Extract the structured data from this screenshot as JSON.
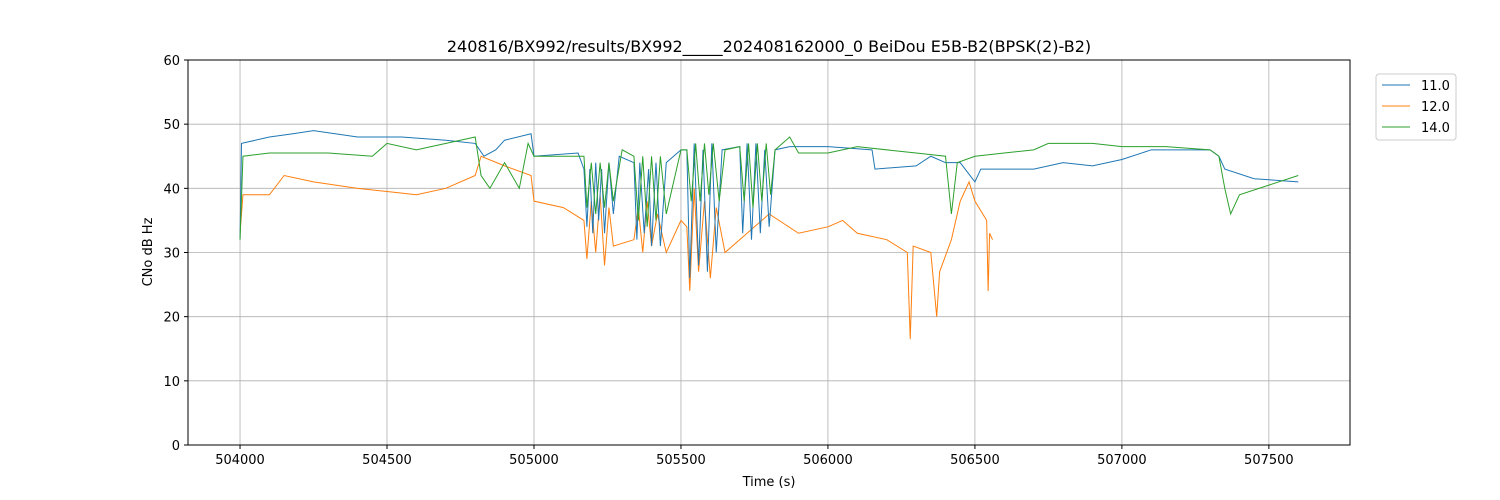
{
  "chart_data": {
    "type": "line",
    "title": "240816/BX992/results/BX992_____202408162000_0 BeiDou E5B-B2(BPSK(2)-B2)",
    "xlabel": "Time (s)",
    "ylabel": "CNo dB Hz",
    "xlim": [
      503823,
      507776
    ],
    "ylim": [
      0,
      60
    ],
    "xticks": [
      504000,
      504500,
      505000,
      505500,
      506000,
      506500,
      507000,
      507500
    ],
    "yticks": [
      0,
      10,
      20,
      30,
      40,
      50,
      60
    ],
    "grid": true,
    "legend_position": "outside-top-right",
    "series": [
      {
        "name": "11.0",
        "color": "#1f77b4",
        "points": [
          [
            504000,
            32
          ],
          [
            504005,
            47
          ],
          [
            504100,
            48
          ],
          [
            504180,
            48.5
          ],
          [
            504250,
            49
          ],
          [
            504400,
            48
          ],
          [
            504550,
            48
          ],
          [
            504700,
            47.5
          ],
          [
            504800,
            47
          ],
          [
            504830,
            45
          ],
          [
            504870,
            46
          ],
          [
            504900,
            47.5
          ],
          [
            504990,
            48.5
          ],
          [
            505000,
            45
          ],
          [
            505150,
            45.5
          ],
          [
            505170,
            43
          ],
          [
            505180,
            34
          ],
          [
            505190,
            43
          ],
          [
            505200,
            33
          ],
          [
            505210,
            44
          ],
          [
            505220,
            35
          ],
          [
            505230,
            43
          ],
          [
            505240,
            33
          ],
          [
            505255,
            44
          ],
          [
            505270,
            36
          ],
          [
            505290,
            45
          ],
          [
            505340,
            44
          ],
          [
            505350,
            32
          ],
          [
            505360,
            44
          ],
          [
            505375,
            33
          ],
          [
            505390,
            43
          ],
          [
            505400,
            31
          ],
          [
            505415,
            44
          ],
          [
            505430,
            31
          ],
          [
            505450,
            44
          ],
          [
            505500,
            46
          ],
          [
            505520,
            46
          ],
          [
            505530,
            26
          ],
          [
            505545,
            47
          ],
          [
            505560,
            28
          ],
          [
            505575,
            46
          ],
          [
            505590,
            27
          ],
          [
            505605,
            47
          ],
          [
            505620,
            30
          ],
          [
            505640,
            46
          ],
          [
            505700,
            46.5
          ],
          [
            505710,
            33
          ],
          [
            505725,
            47
          ],
          [
            505740,
            32
          ],
          [
            505755,
            47
          ],
          [
            505770,
            33
          ],
          [
            505785,
            46
          ],
          [
            505800,
            34
          ],
          [
            505820,
            46
          ],
          [
            505870,
            46.5
          ],
          [
            506000,
            46.5
          ],
          [
            506150,
            46
          ],
          [
            506160,
            43
          ],
          [
            506300,
            43.5
          ],
          [
            506350,
            45
          ],
          [
            506400,
            44
          ],
          [
            506450,
            44
          ],
          [
            506500,
            41
          ],
          [
            506520,
            43
          ],
          [
            506700,
            43
          ],
          [
            506800,
            44
          ],
          [
            506900,
            43.5
          ],
          [
            507000,
            44.5
          ],
          [
            507100,
            46
          ],
          [
            507300,
            46
          ],
          [
            507330,
            45
          ],
          [
            507350,
            43
          ],
          [
            507450,
            41.5
          ],
          [
            507600,
            41
          ]
        ]
      },
      {
        "name": "12.0",
        "color": "#ff7f0e",
        "points": [
          [
            504000,
            33
          ],
          [
            504010,
            39
          ],
          [
            504100,
            39
          ],
          [
            504150,
            42
          ],
          [
            504250,
            41
          ],
          [
            504400,
            40
          ],
          [
            504500,
            39.5
          ],
          [
            504600,
            39
          ],
          [
            504700,
            40
          ],
          [
            504800,
            42
          ],
          [
            504820,
            45
          ],
          [
            504900,
            43.5
          ],
          [
            504990,
            42
          ],
          [
            505000,
            38
          ],
          [
            505100,
            37
          ],
          [
            505170,
            35
          ],
          [
            505180,
            29
          ],
          [
            505195,
            38
          ],
          [
            505210,
            30
          ],
          [
            505225,
            39
          ],
          [
            505240,
            28
          ],
          [
            505255,
            37
          ],
          [
            505270,
            31
          ],
          [
            505340,
            32
          ],
          [
            505355,
            37
          ],
          [
            505370,
            30
          ],
          [
            505385,
            38
          ],
          [
            505400,
            31
          ],
          [
            505420,
            36
          ],
          [
            505450,
            30
          ],
          [
            505500,
            35
          ],
          [
            505520,
            34
          ],
          [
            505530,
            24
          ],
          [
            505545,
            40
          ],
          [
            505560,
            27
          ],
          [
            505580,
            38
          ],
          [
            505600,
            26
          ],
          [
            505620,
            37
          ],
          [
            505650,
            30
          ],
          [
            505700,
            32
          ],
          [
            505800,
            36
          ],
          [
            505900,
            33
          ],
          [
            506000,
            34
          ],
          [
            506050,
            35
          ],
          [
            506100,
            33
          ],
          [
            506200,
            32
          ],
          [
            506270,
            30
          ],
          [
            506280,
            16.5
          ],
          [
            506290,
            31
          ],
          [
            506350,
            30
          ],
          [
            506370,
            20
          ],
          [
            506380,
            27
          ],
          [
            506420,
            32
          ],
          [
            506450,
            38
          ],
          [
            506480,
            41
          ],
          [
            506500,
            38
          ],
          [
            506540,
            35
          ],
          [
            506545,
            24
          ],
          [
            506550,
            33
          ],
          [
            506560,
            32
          ]
        ]
      },
      {
        "name": "14.0",
        "color": "#2ca02c",
        "points": [
          [
            504000,
            32
          ],
          [
            504010,
            45
          ],
          [
            504100,
            45.5
          ],
          [
            504300,
            45.5
          ],
          [
            504450,
            45
          ],
          [
            504500,
            47
          ],
          [
            504600,
            46
          ],
          [
            504650,
            46.5
          ],
          [
            504800,
            48
          ],
          [
            504820,
            42
          ],
          [
            504850,
            40
          ],
          [
            504900,
            44
          ],
          [
            504950,
            40
          ],
          [
            504980,
            47
          ],
          [
            505000,
            45
          ],
          [
            505170,
            45
          ],
          [
            505180,
            37
          ],
          [
            505195,
            44
          ],
          [
            505210,
            36
          ],
          [
            505225,
            44
          ],
          [
            505240,
            37
          ],
          [
            505255,
            44
          ],
          [
            505270,
            38
          ],
          [
            505300,
            46
          ],
          [
            505340,
            45
          ],
          [
            505355,
            35
          ],
          [
            505370,
            45
          ],
          [
            505385,
            34
          ],
          [
            505400,
            45
          ],
          [
            505415,
            35
          ],
          [
            505430,
            45
          ],
          [
            505450,
            36
          ],
          [
            505500,
            46
          ],
          [
            505520,
            46
          ],
          [
            505535,
            38
          ],
          [
            505550,
            47
          ],
          [
            505565,
            38
          ],
          [
            505580,
            47
          ],
          [
            505595,
            39
          ],
          [
            505610,
            47
          ],
          [
            505630,
            38
          ],
          [
            505650,
            46
          ],
          [
            505700,
            46.5
          ],
          [
            505715,
            38
          ],
          [
            505730,
            47
          ],
          [
            505745,
            37
          ],
          [
            505760,
            47
          ],
          [
            505775,
            38
          ],
          [
            505790,
            47
          ],
          [
            505805,
            39
          ],
          [
            505820,
            46
          ],
          [
            505870,
            48
          ],
          [
            505900,
            45.5
          ],
          [
            506000,
            45.5
          ],
          [
            506100,
            46.5
          ],
          [
            506300,
            45.5
          ],
          [
            506400,
            45
          ],
          [
            506420,
            36
          ],
          [
            506440,
            44
          ],
          [
            506500,
            45
          ],
          [
            506600,
            45.5
          ],
          [
            506700,
            46
          ],
          [
            506750,
            47
          ],
          [
            506900,
            47
          ],
          [
            507000,
            46.5
          ],
          [
            507150,
            46.5
          ],
          [
            507300,
            46
          ],
          [
            507330,
            45
          ],
          [
            507350,
            40
          ],
          [
            507370,
            36
          ],
          [
            507400,
            39
          ],
          [
            507500,
            40.5
          ],
          [
            507600,
            42
          ]
        ]
      }
    ]
  }
}
